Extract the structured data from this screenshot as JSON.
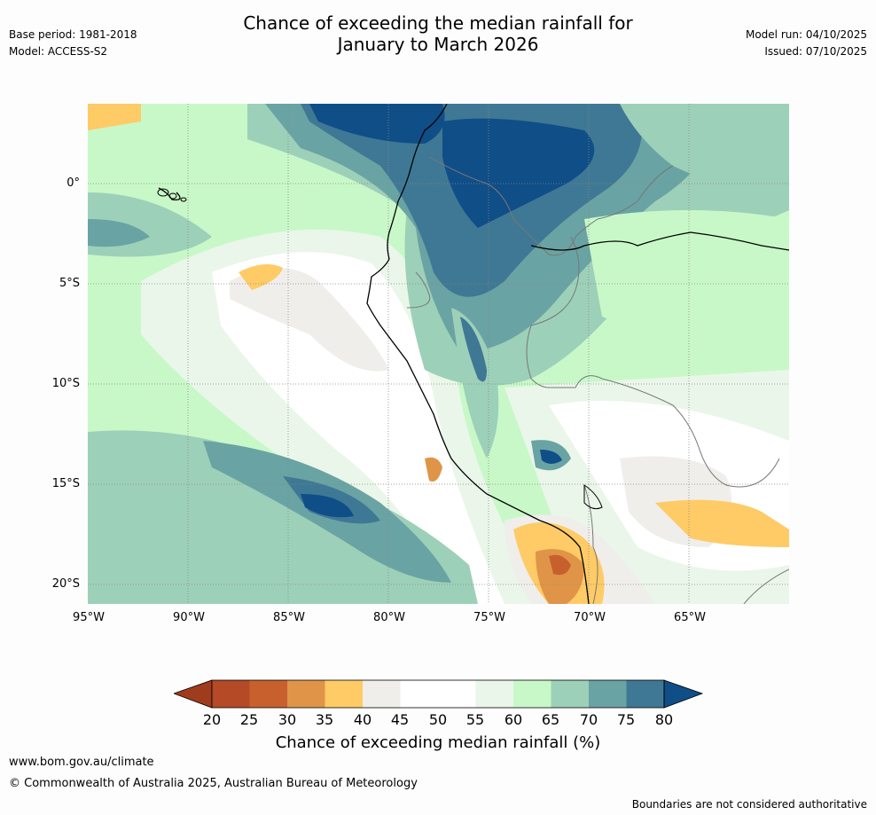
{
  "header": {
    "title_line1": "Chance of exceeding the median rainfall for",
    "title_line2": "January to March 2026",
    "base_period": "Base period: 1981-2018",
    "model": "Model: ACCESS-S2",
    "model_run": "Model run: 04/10/2025",
    "issued": "Issued: 07/10/2025"
  },
  "map": {
    "lat_labels": [
      "0°",
      "5°S",
      "10°S",
      "15°S",
      "20°S"
    ],
    "lon_labels": [
      "95°W",
      "90°W",
      "85°W",
      "80°W",
      "75°W",
      "70°W",
      "65°W"
    ],
    "colors": {
      "c20": "#a03c1e",
      "c25": "#b44a26",
      "c30": "#c8602e",
      "c35": "#e09448",
      "c40": "#fecb66",
      "c45": "#efeeea",
      "c50": "#ffffff",
      "c55": "#ffffff",
      "c60": "#eaf6ea",
      "c65": "#c8f8c8",
      "c70": "#9dd0b8",
      "c75": "#6aa3a3",
      "c80": "#3f7894",
      "c85": "#104e88"
    }
  },
  "colorbar": {
    "ticks": [
      "20",
      "25",
      "30",
      "35",
      "40",
      "45",
      "50",
      "55",
      "60",
      "65",
      "70",
      "75",
      "80"
    ],
    "label": "Chance of exceeding median rainfall (%)"
  },
  "footer": {
    "website": "www.bom.gov.au/climate",
    "copyright": "© Commonwealth of Australia 2025, Australian Bureau of Meteorology",
    "disclaimer": "Boundaries are not considered authoritative"
  }
}
